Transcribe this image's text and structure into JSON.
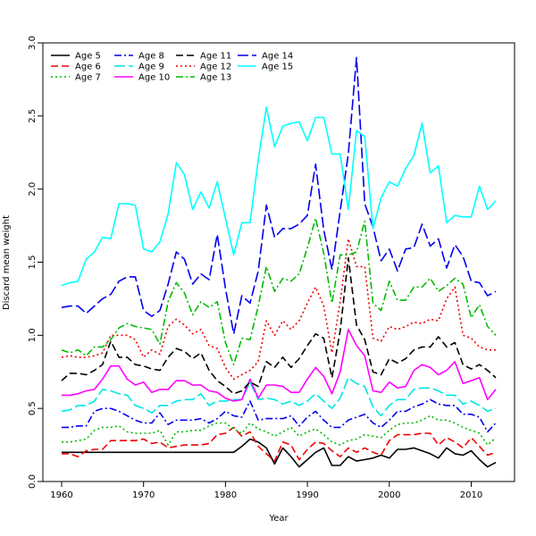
{
  "chart_data": {
    "type": "line",
    "title": "",
    "xlabel": "Year",
    "ylabel": "Discard mean weight",
    "xlim": [
      1960,
      2013
    ],
    "ylim": [
      0.0,
      3.0
    ],
    "xticks": [
      1960,
      1970,
      1980,
      1990,
      2000,
      2010
    ],
    "yticks": [
      0.0,
      0.5,
      1.0,
      1.5,
      2.0,
      2.5,
      3.0
    ],
    "ytick_labels": [
      "0.0",
      "0.5",
      "1.0",
      "1.5",
      "2.0",
      "2.5",
      "3.0"
    ],
    "grid": false,
    "legend_position": "top-left",
    "x": [
      1960,
      1961,
      1962,
      1963,
      1964,
      1965,
      1966,
      1967,
      1968,
      1969,
      1970,
      1971,
      1972,
      1973,
      1974,
      1975,
      1976,
      1977,
      1978,
      1979,
      1980,
      1981,
      1982,
      1983,
      1984,
      1985,
      1986,
      1987,
      1988,
      1989,
      1990,
      1991,
      1992,
      1993,
      1994,
      1995,
      1996,
      1997,
      1998,
      1999,
      2000,
      2001,
      2002,
      2003,
      2004,
      2005,
      2006,
      2007,
      2008,
      2009,
      2010,
      2011,
      2012,
      2013
    ],
    "series": [
      {
        "name": "Age 5",
        "color": "#000000",
        "dash": "solid",
        "values": [
          0.2,
          0.2,
          0.2,
          0.2,
          0.2,
          0.2,
          0.2,
          0.2,
          0.2,
          0.2,
          0.2,
          0.2,
          0.2,
          0.2,
          0.2,
          0.2,
          0.2,
          0.2,
          0.2,
          0.2,
          0.2,
          0.2,
          0.24,
          0.29,
          0.27,
          0.23,
          0.12,
          0.23,
          0.17,
          0.1,
          0.15,
          0.2,
          0.23,
          0.11,
          0.11,
          0.17,
          0.14,
          0.15,
          0.16,
          0.18,
          0.16,
          0.22,
          0.22,
          0.23,
          0.21,
          0.19,
          0.16,
          0.23,
          0.19,
          0.18,
          0.21,
          0.15,
          0.1,
          0.13
        ]
      },
      {
        "name": "Age 6",
        "color": "#ee0000",
        "dash": "dashed",
        "values": [
          0.19,
          0.19,
          0.17,
          0.21,
          0.22,
          0.22,
          0.28,
          0.28,
          0.28,
          0.28,
          0.29,
          0.26,
          0.27,
          0.23,
          0.24,
          0.25,
          0.25,
          0.25,
          0.26,
          0.32,
          0.33,
          0.37,
          0.31,
          0.34,
          0.24,
          0.19,
          0.14,
          0.27,
          0.25,
          0.15,
          0.22,
          0.27,
          0.26,
          0.21,
          0.17,
          0.23,
          0.2,
          0.23,
          0.2,
          0.18,
          0.28,
          0.32,
          0.32,
          0.32,
          0.33,
          0.33,
          0.25,
          0.3,
          0.27,
          0.23,
          0.3,
          0.24,
          0.18,
          0.2
        ]
      },
      {
        "name": "Age 7",
        "color": "#00bb00",
        "dash": "dotted",
        "values": [
          0.27,
          0.27,
          0.28,
          0.29,
          0.35,
          0.37,
          0.37,
          0.38,
          0.34,
          0.33,
          0.33,
          0.33,
          0.35,
          0.25,
          0.34,
          0.34,
          0.35,
          0.35,
          0.38,
          0.4,
          0.4,
          0.36,
          0.33,
          0.4,
          0.36,
          0.34,
          0.31,
          0.34,
          0.37,
          0.31,
          0.34,
          0.36,
          0.32,
          0.27,
          0.25,
          0.28,
          0.29,
          0.32,
          0.31,
          0.3,
          0.35,
          0.39,
          0.4,
          0.4,
          0.42,
          0.45,
          0.42,
          0.42,
          0.4,
          0.37,
          0.35,
          0.33,
          0.25,
          0.3
        ]
      },
      {
        "name": "Age 8",
        "color": "#0000ee",
        "dash": "dashdot",
        "values": [
          0.37,
          0.37,
          0.38,
          0.38,
          0.48,
          0.5,
          0.5,
          0.48,
          0.45,
          0.42,
          0.4,
          0.4,
          0.47,
          0.39,
          0.42,
          0.42,
          0.42,
          0.43,
          0.4,
          0.43,
          0.48,
          0.45,
          0.44,
          0.55,
          0.42,
          0.43,
          0.43,
          0.43,
          0.45,
          0.38,
          0.44,
          0.48,
          0.42,
          0.37,
          0.37,
          0.42,
          0.44,
          0.46,
          0.4,
          0.37,
          0.42,
          0.48,
          0.48,
          0.51,
          0.53,
          0.56,
          0.53,
          0.52,
          0.52,
          0.46,
          0.46,
          0.44,
          0.34,
          0.4
        ]
      },
      {
        "name": "Age 9",
        "color": "#00e5e5",
        "dash": "longdash",
        "values": [
          0.48,
          0.49,
          0.52,
          0.52,
          0.55,
          0.63,
          0.62,
          0.6,
          0.59,
          0.52,
          0.5,
          0.47,
          0.52,
          0.52,
          0.55,
          0.56,
          0.56,
          0.6,
          0.52,
          0.55,
          0.55,
          0.56,
          0.56,
          0.68,
          0.56,
          0.57,
          0.56,
          0.53,
          0.55,
          0.52,
          0.55,
          0.6,
          0.55,
          0.5,
          0.57,
          0.71,
          0.67,
          0.65,
          0.51,
          0.45,
          0.52,
          0.56,
          0.56,
          0.63,
          0.64,
          0.64,
          0.62,
          0.59,
          0.59,
          0.53,
          0.55,
          0.52,
          0.48,
          0.5
        ]
      },
      {
        "name": "Age 10",
        "color": "#ff00ff",
        "dash": "solid",
        "values": [
          0.59,
          0.59,
          0.6,
          0.62,
          0.63,
          0.7,
          0.79,
          0.79,
          0.7,
          0.66,
          0.68,
          0.61,
          0.63,
          0.63,
          0.69,
          0.69,
          0.66,
          0.66,
          0.62,
          0.61,
          0.57,
          0.55,
          0.56,
          0.7,
          0.57,
          0.66,
          0.66,
          0.65,
          0.61,
          0.61,
          0.7,
          0.78,
          0.72,
          0.6,
          0.75,
          1.04,
          0.93,
          0.86,
          0.62,
          0.61,
          0.68,
          0.64,
          0.65,
          0.76,
          0.8,
          0.78,
          0.73,
          0.76,
          0.82,
          0.67,
          0.69,
          0.71,
          0.56,
          0.63
        ]
      },
      {
        "name": "Age 11",
        "color": "#000000",
        "dash": "dashed",
        "values": [
          0.69,
          0.74,
          0.74,
          0.73,
          0.76,
          0.8,
          0.96,
          0.85,
          0.85,
          0.8,
          0.79,
          0.77,
          0.76,
          0.85,
          0.91,
          0.89,
          0.84,
          0.88,
          0.76,
          0.69,
          0.65,
          0.6,
          0.62,
          0.68,
          0.65,
          0.82,
          0.78,
          0.85,
          0.78,
          0.84,
          0.93,
          1.01,
          0.98,
          0.71,
          1.03,
          1.53,
          1.07,
          0.97,
          0.75,
          0.73,
          0.84,
          0.81,
          0.84,
          0.9,
          0.92,
          0.92,
          0.99,
          0.92,
          0.95,
          0.8,
          0.77,
          0.8,
          0.76,
          0.71
        ]
      },
      {
        "name": "Age 12",
        "color": "#ee0000",
        "dash": "dotted",
        "values": [
          0.85,
          0.86,
          0.85,
          0.85,
          0.86,
          0.88,
          1.0,
          1.0,
          1.0,
          0.97,
          0.85,
          0.9,
          0.87,
          1.06,
          1.11,
          1.07,
          1.01,
          1.04,
          0.93,
          0.91,
          0.78,
          0.7,
          0.73,
          0.76,
          0.82,
          1.1,
          1.0,
          1.1,
          1.04,
          1.1,
          1.22,
          1.33,
          1.2,
          0.88,
          1.23,
          1.66,
          1.47,
          1.47,
          0.98,
          0.96,
          1.06,
          1.04,
          1.06,
          1.09,
          1.08,
          1.11,
          1.1,
          1.25,
          1.33,
          1.0,
          0.98,
          0.92,
          0.9,
          0.9
        ]
      },
      {
        "name": "Age 13",
        "color": "#00bb00",
        "dash": "dashdot",
        "values": [
          0.9,
          0.88,
          0.9,
          0.86,
          0.92,
          0.92,
          0.97,
          1.05,
          1.08,
          1.06,
          1.05,
          1.04,
          0.94,
          1.23,
          1.36,
          1.29,
          1.14,
          1.23,
          1.19,
          1.23,
          0.95,
          0.8,
          0.98,
          0.97,
          1.2,
          1.47,
          1.3,
          1.39,
          1.37,
          1.42,
          1.6,
          1.8,
          1.56,
          1.22,
          1.55,
          1.55,
          1.57,
          1.78,
          1.22,
          1.17,
          1.37,
          1.24,
          1.24,
          1.33,
          1.33,
          1.39,
          1.3,
          1.34,
          1.39,
          1.35,
          1.12,
          1.21,
          1.06,
          1.0
        ]
      },
      {
        "name": "Age 14",
        "color": "#0000ee",
        "dash": "longdash",
        "values": [
          1.19,
          1.2,
          1.2,
          1.15,
          1.2,
          1.25,
          1.28,
          1.37,
          1.4,
          1.4,
          1.17,
          1.13,
          1.17,
          1.35,
          1.57,
          1.52,
          1.35,
          1.42,
          1.38,
          1.69,
          1.32,
          1.01,
          1.27,
          1.22,
          1.44,
          1.89,
          1.67,
          1.73,
          1.73,
          1.76,
          1.82,
          2.17,
          1.72,
          1.45,
          1.85,
          2.24,
          2.9,
          1.9,
          1.74,
          1.51,
          1.59,
          1.44,
          1.59,
          1.6,
          1.76,
          1.61,
          1.66,
          1.46,
          1.62,
          1.54,
          1.37,
          1.36,
          1.27,
          1.3
        ]
      },
      {
        "name": "Age 15",
        "color": "#00ffff",
        "dash": "solid",
        "values": [
          1.34,
          1.36,
          1.37,
          1.52,
          1.57,
          1.67,
          1.66,
          1.9,
          1.9,
          1.89,
          1.59,
          1.57,
          1.64,
          1.83,
          2.18,
          2.1,
          1.86,
          1.98,
          1.87,
          2.05,
          1.8,
          1.55,
          1.77,
          1.77,
          2.2,
          2.56,
          2.29,
          2.43,
          2.45,
          2.46,
          2.33,
          2.49,
          2.49,
          2.24,
          2.24,
          1.86,
          2.4,
          2.36,
          1.73,
          1.94,
          2.05,
          2.02,
          2.14,
          2.23,
          2.45,
          2.11,
          2.16,
          1.77,
          1.82,
          1.81,
          1.81,
          2.02,
          1.86,
          1.92
        ]
      }
    ]
  }
}
